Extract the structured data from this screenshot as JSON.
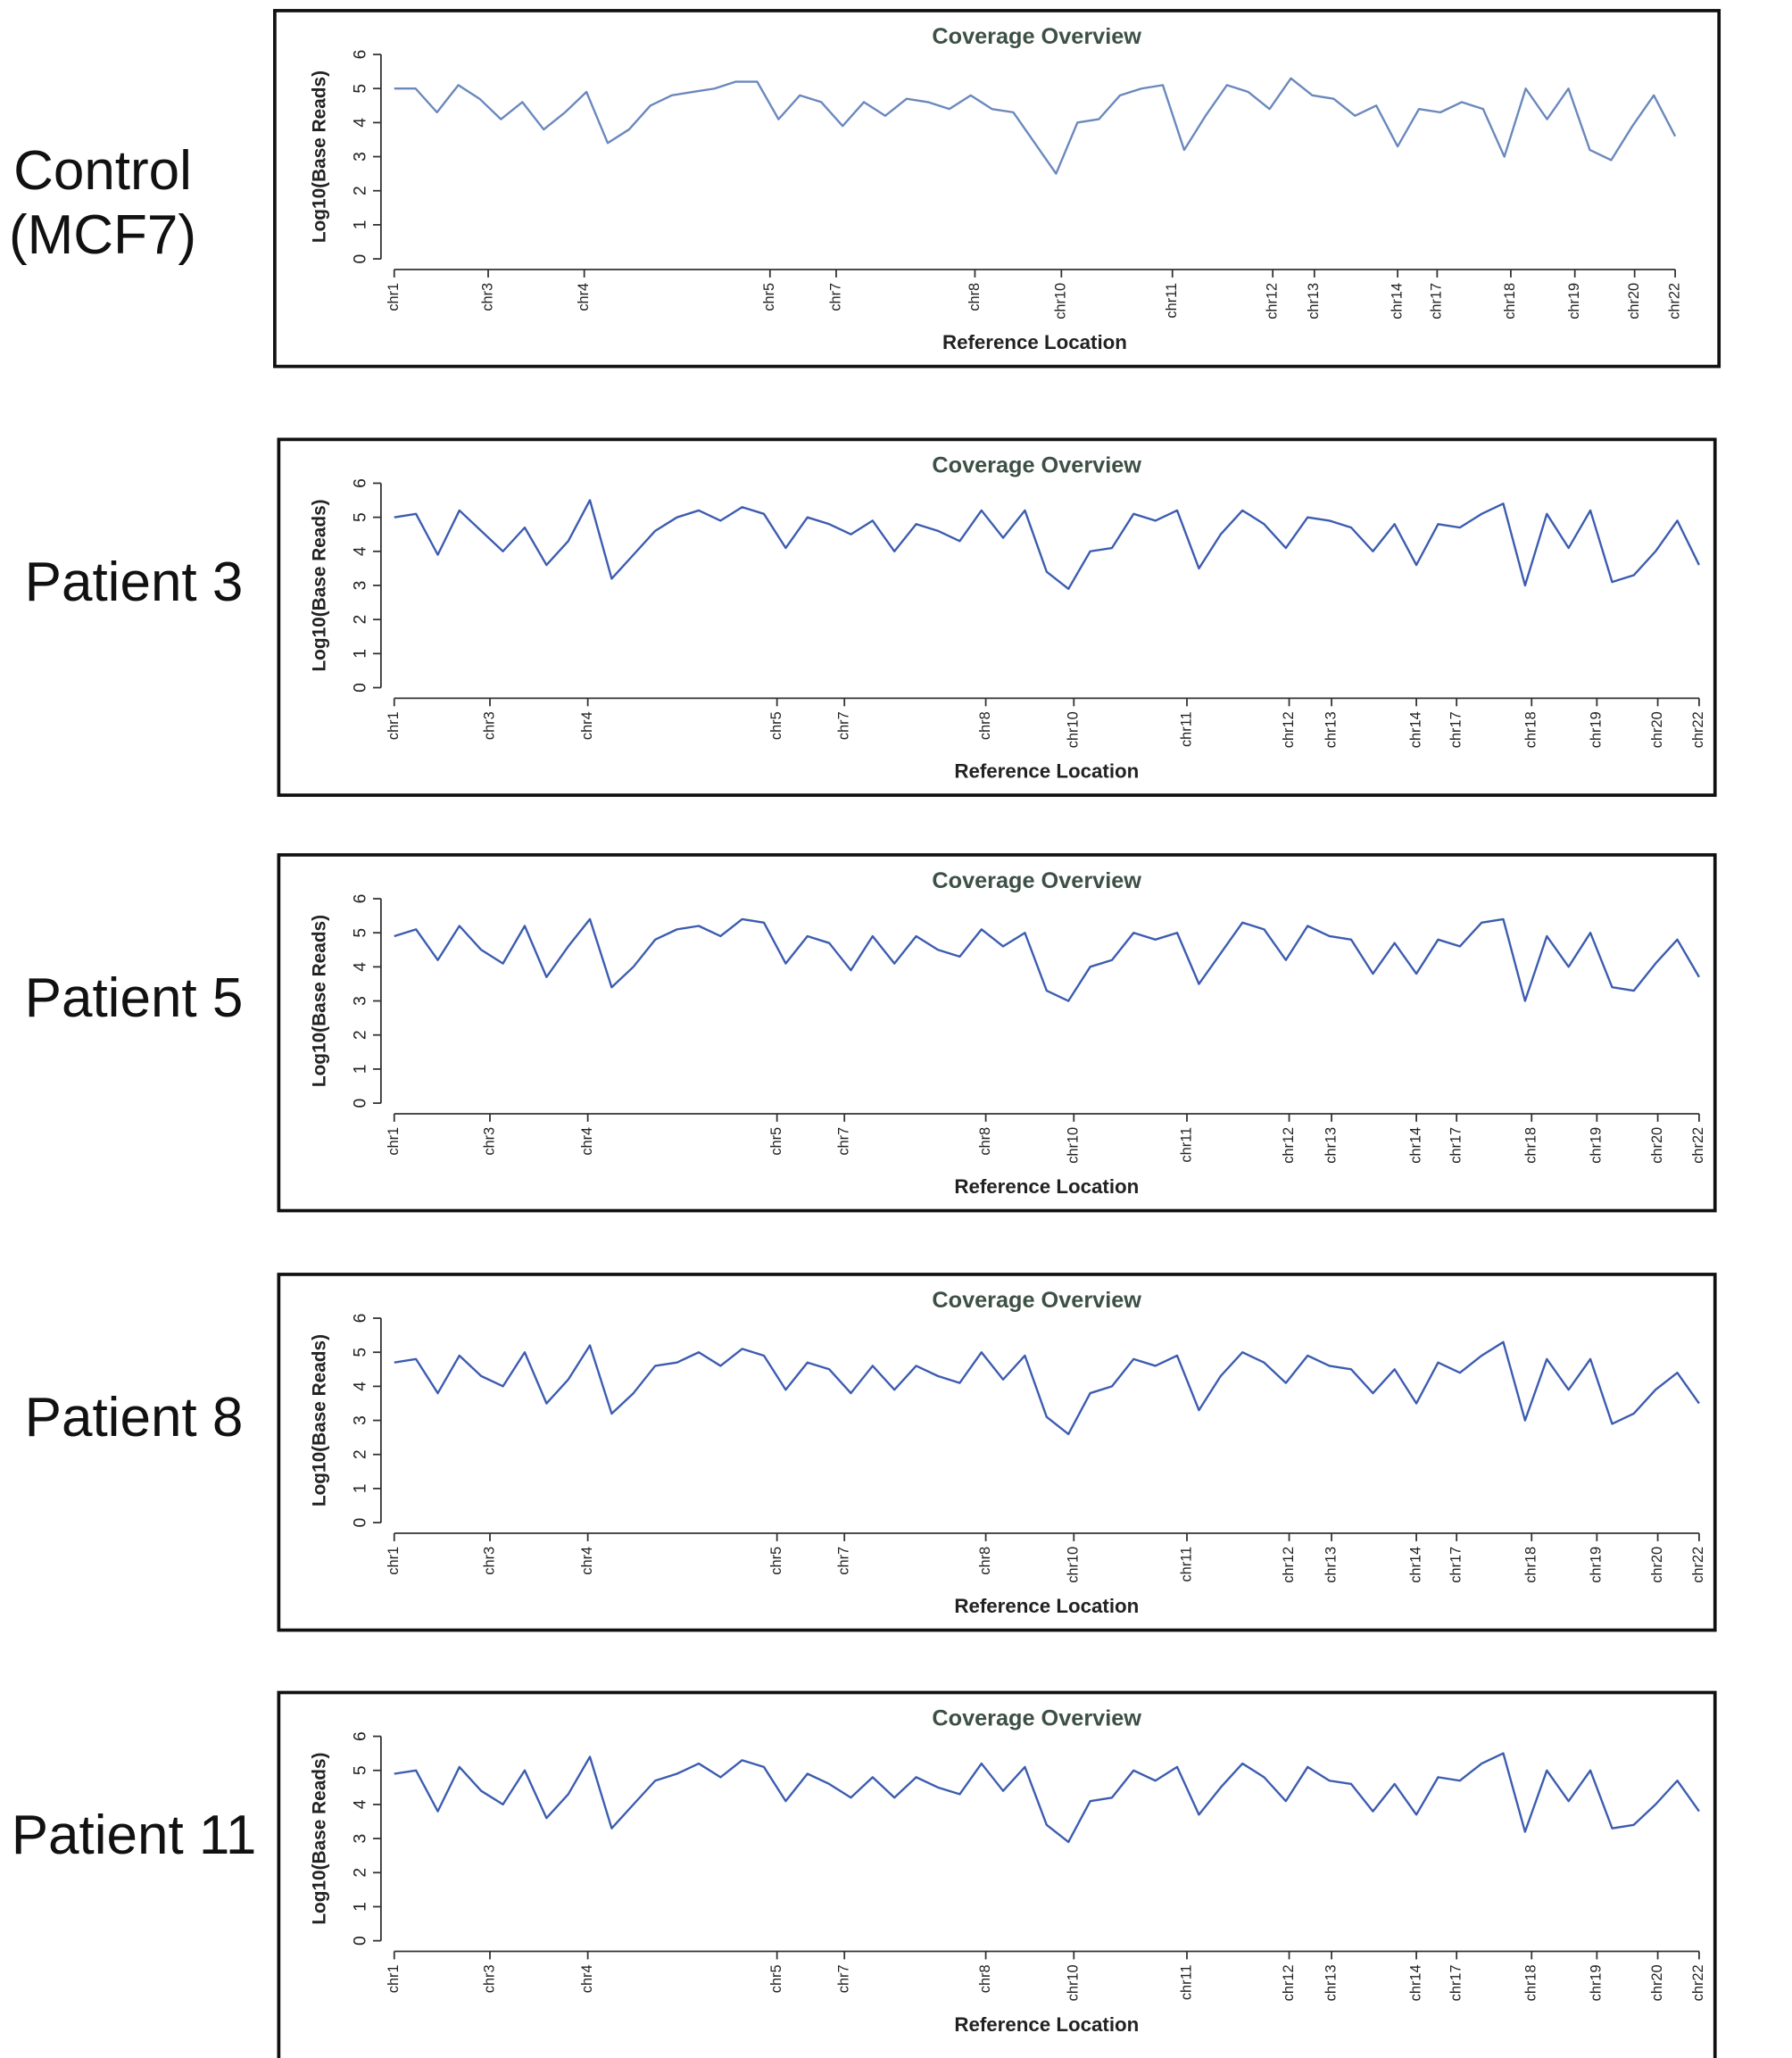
{
  "chart_data": [
    {
      "type": "line",
      "label": "Control (MCF7)",
      "title": "Coverage Overview",
      "xlabel": "Reference Location",
      "ylabel": "Log10(Base Reads)",
      "color": "#6a88bd",
      "xlim": [
        0,
        120
      ],
      "ylim": [
        0,
        6
      ],
      "yticks": [
        0,
        1,
        2,
        3,
        4,
        5,
        6
      ],
      "xticks": [
        {
          "value": 0,
          "label": "chr1"
        },
        {
          "value": 8.8,
          "label": "chr3"
        },
        {
          "value": 17.8,
          "label": "chr4"
        },
        {
          "value": 35.2,
          "label": "chr5"
        },
        {
          "value": 41.4,
          "label": "chr7"
        },
        {
          "value": 54.4,
          "label": "chr8"
        },
        {
          "value": 62.5,
          "label": "chr10"
        },
        {
          "value": 72.9,
          "label": "chr11"
        },
        {
          "value": 82.3,
          "label": "chr12"
        },
        {
          "value": 86.2,
          "label": "chr13"
        },
        {
          "value": 94,
          "label": "chr14"
        },
        {
          "value": 97.7,
          "label": "chr17"
        },
        {
          "value": 104.6,
          "label": "chr18"
        },
        {
          "value": 110.6,
          "label": "chr19"
        },
        {
          "value": 116.2,
          "label": "chr20"
        },
        {
          "value": 120,
          "label": "chr22"
        }
      ],
      "x": [
        0,
        2,
        4,
        6,
        8,
        10,
        12,
        14,
        16,
        18,
        20,
        22,
        24,
        26,
        28,
        30,
        32,
        34,
        36,
        38,
        40,
        42,
        44,
        46,
        48,
        50,
        52,
        54,
        56,
        58,
        60,
        62,
        64,
        66,
        68,
        70,
        72,
        74,
        76,
        78,
        80,
        82,
        84,
        86,
        88,
        90,
        92,
        94,
        96,
        98,
        100,
        102,
        104,
        106,
        108,
        110,
        112,
        114,
        116,
        118,
        120
      ],
      "values": [
        5.0,
        5.0,
        4.3,
        5.1,
        4.7,
        4.1,
        4.6,
        3.8,
        4.3,
        4.9,
        3.4,
        3.8,
        4.5,
        4.8,
        4.9,
        5.0,
        5.2,
        5.2,
        4.1,
        4.8,
        4.6,
        3.9,
        4.6,
        4.2,
        4.7,
        4.6,
        4.4,
        4.8,
        4.4,
        4.3,
        3.4,
        2.5,
        4.0,
        4.1,
        4.8,
        5.0,
        5.1,
        3.2,
        4.2,
        5.1,
        4.9,
        4.4,
        5.3,
        4.8,
        4.7,
        4.2,
        4.5,
        3.3,
        4.4,
        4.3,
        4.6,
        4.4,
        3.0,
        5.0,
        4.1,
        5.0,
        3.2,
        2.9,
        3.9,
        4.8,
        3.6
      ]
    },
    {
      "type": "line",
      "label": "Patient 3",
      "title": "Coverage Overview",
      "xlabel": "Reference Location",
      "ylabel": "Log10(Base Reads)",
      "color": "#3c5cb0",
      "xlim": [
        0,
        120
      ],
      "ylim": [
        0,
        6
      ],
      "yticks": [
        0,
        1,
        2,
        3,
        4,
        5,
        6
      ],
      "xticks": [
        {
          "value": 0,
          "label": "chr1"
        },
        {
          "value": 8.8,
          "label": "chr3"
        },
        {
          "value": 17.8,
          "label": "chr4"
        },
        {
          "value": 35.2,
          "label": "chr5"
        },
        {
          "value": 41.4,
          "label": "chr7"
        },
        {
          "value": 54.4,
          "label": "chr8"
        },
        {
          "value": 62.5,
          "label": "chr10"
        },
        {
          "value": 72.9,
          "label": "chr11"
        },
        {
          "value": 82.3,
          "label": "chr12"
        },
        {
          "value": 86.2,
          "label": "chr13"
        },
        {
          "value": 94,
          "label": "chr14"
        },
        {
          "value": 97.7,
          "label": "chr17"
        },
        {
          "value": 104.6,
          "label": "chr18"
        },
        {
          "value": 110.6,
          "label": "chr19"
        },
        {
          "value": 116.2,
          "label": "chr20"
        },
        {
          "value": 120,
          "label": "chr22"
        }
      ],
      "x": [
        0,
        2,
        4,
        6,
        8,
        10,
        12,
        14,
        16,
        18,
        20,
        22,
        24,
        26,
        28,
        30,
        32,
        34,
        36,
        38,
        40,
        42,
        44,
        46,
        48,
        50,
        52,
        54,
        56,
        58,
        60,
        62,
        64,
        66,
        68,
        70,
        72,
        74,
        76,
        78,
        80,
        82,
        84,
        86,
        88,
        90,
        92,
        94,
        96,
        98,
        100,
        102,
        104,
        106,
        108,
        110,
        112,
        114,
        116,
        118,
        120
      ],
      "values": [
        5.0,
        5.1,
        3.9,
        5.2,
        4.6,
        4.0,
        4.7,
        3.6,
        4.3,
        5.5,
        3.2,
        3.9,
        4.6,
        5.0,
        5.2,
        4.9,
        5.3,
        5.1,
        4.1,
        5.0,
        4.8,
        4.5,
        4.9,
        4.0,
        4.8,
        4.6,
        4.3,
        5.2,
        4.4,
        5.2,
        3.4,
        2.9,
        4.0,
        4.1,
        5.1,
        4.9,
        5.2,
        3.5,
        4.5,
        5.2,
        4.8,
        4.1,
        5.0,
        4.9,
        4.7,
        4.0,
        4.8,
        3.6,
        4.8,
        4.7,
        5.1,
        5.4,
        3.0,
        5.1,
        4.1,
        5.2,
        3.1,
        3.3,
        4.0,
        4.9,
        3.6
      ]
    },
    {
      "type": "line",
      "label": "Patient 5",
      "title": "Coverage Overview",
      "xlabel": "Reference Location",
      "ylabel": "Log10(Base Reads)",
      "color": "#3c5cb0",
      "xlim": [
        0,
        120
      ],
      "ylim": [
        0,
        6
      ],
      "yticks": [
        0,
        1,
        2,
        3,
        4,
        5,
        6
      ],
      "xticks": [
        {
          "value": 0,
          "label": "chr1"
        },
        {
          "value": 8.8,
          "label": "chr3"
        },
        {
          "value": 17.8,
          "label": "chr4"
        },
        {
          "value": 35.2,
          "label": "chr5"
        },
        {
          "value": 41.4,
          "label": "chr7"
        },
        {
          "value": 54.4,
          "label": "chr8"
        },
        {
          "value": 62.5,
          "label": "chr10"
        },
        {
          "value": 72.9,
          "label": "chr11"
        },
        {
          "value": 82.3,
          "label": "chr12"
        },
        {
          "value": 86.2,
          "label": "chr13"
        },
        {
          "value": 94,
          "label": "chr14"
        },
        {
          "value": 97.7,
          "label": "chr17"
        },
        {
          "value": 104.6,
          "label": "chr18"
        },
        {
          "value": 110.6,
          "label": "chr19"
        },
        {
          "value": 116.2,
          "label": "chr20"
        },
        {
          "value": 120,
          "label": "chr22"
        }
      ],
      "x": [
        0,
        2,
        4,
        6,
        8,
        10,
        12,
        14,
        16,
        18,
        20,
        22,
        24,
        26,
        28,
        30,
        32,
        34,
        36,
        38,
        40,
        42,
        44,
        46,
        48,
        50,
        52,
        54,
        56,
        58,
        60,
        62,
        64,
        66,
        68,
        70,
        72,
        74,
        76,
        78,
        80,
        82,
        84,
        86,
        88,
        90,
        92,
        94,
        96,
        98,
        100,
        102,
        104,
        106,
        108,
        110,
        112,
        114,
        116,
        118,
        120
      ],
      "values": [
        4.9,
        5.1,
        4.2,
        5.2,
        4.5,
        4.1,
        5.2,
        3.7,
        4.6,
        5.4,
        3.4,
        4.0,
        4.8,
        5.1,
        5.2,
        4.9,
        5.4,
        5.3,
        4.1,
        4.9,
        4.7,
        3.9,
        4.9,
        4.1,
        4.9,
        4.5,
        4.3,
        5.1,
        4.6,
        5.0,
        3.3,
        3.0,
        4.0,
        4.2,
        5.0,
        4.8,
        5.0,
        3.5,
        4.4,
        5.3,
        5.1,
        4.2,
        5.2,
        4.9,
        4.8,
        3.8,
        4.7,
        3.8,
        4.8,
        4.6,
        5.3,
        5.4,
        3.0,
        4.9,
        4.0,
        5.0,
        3.4,
        3.3,
        4.1,
        4.8,
        3.7
      ]
    },
    {
      "type": "line",
      "label": "Patient 8",
      "title": "Coverage Overview",
      "xlabel": "Reference Location",
      "ylabel": "Log10(Base Reads)",
      "color": "#3c5cb0",
      "xlim": [
        0,
        120
      ],
      "ylim": [
        0,
        6
      ],
      "yticks": [
        0,
        1,
        2,
        3,
        4,
        5,
        6
      ],
      "xticks": [
        {
          "value": 0,
          "label": "chr1"
        },
        {
          "value": 8.8,
          "label": "chr3"
        },
        {
          "value": 17.8,
          "label": "chr4"
        },
        {
          "value": 35.2,
          "label": "chr5"
        },
        {
          "value": 41.4,
          "label": "chr7"
        },
        {
          "value": 54.4,
          "label": "chr8"
        },
        {
          "value": 62.5,
          "label": "chr10"
        },
        {
          "value": 72.9,
          "label": "chr11"
        },
        {
          "value": 82.3,
          "label": "chr12"
        },
        {
          "value": 86.2,
          "label": "chr13"
        },
        {
          "value": 94,
          "label": "chr14"
        },
        {
          "value": 97.7,
          "label": "chr17"
        },
        {
          "value": 104.6,
          "label": "chr18"
        },
        {
          "value": 110.6,
          "label": "chr19"
        },
        {
          "value": 116.2,
          "label": "chr20"
        },
        {
          "value": 120,
          "label": "chr22"
        }
      ],
      "x": [
        0,
        2,
        4,
        6,
        8,
        10,
        12,
        14,
        16,
        18,
        20,
        22,
        24,
        26,
        28,
        30,
        32,
        34,
        36,
        38,
        40,
        42,
        44,
        46,
        48,
        50,
        52,
        54,
        56,
        58,
        60,
        62,
        64,
        66,
        68,
        70,
        72,
        74,
        76,
        78,
        80,
        82,
        84,
        86,
        88,
        90,
        92,
        94,
        96,
        98,
        100,
        102,
        104,
        106,
        108,
        110,
        112,
        114,
        116,
        118,
        120
      ],
      "values": [
        4.7,
        4.8,
        3.8,
        4.9,
        4.3,
        4.0,
        5.0,
        3.5,
        4.2,
        5.2,
        3.2,
        3.8,
        4.6,
        4.7,
        5.0,
        4.6,
        5.1,
        4.9,
        3.9,
        4.7,
        4.5,
        3.8,
        4.6,
        3.9,
        4.6,
        4.3,
        4.1,
        5.0,
        4.2,
        4.9,
        3.1,
        2.6,
        3.8,
        4.0,
        4.8,
        4.6,
        4.9,
        3.3,
        4.3,
        5.0,
        4.7,
        4.1,
        4.9,
        4.6,
        4.5,
        3.8,
        4.5,
        3.5,
        4.7,
        4.4,
        4.9,
        5.3,
        3.0,
        4.8,
        3.9,
        4.8,
        2.9,
        3.2,
        3.9,
        4.4,
        3.5
      ]
    },
    {
      "type": "line",
      "label": "Patient 11",
      "title": "Coverage Overview",
      "xlabel": "Reference Location",
      "ylabel": "Log10(Base Reads)",
      "color": "#3c5cb0",
      "xlim": [
        0,
        120
      ],
      "ylim": [
        0,
        6
      ],
      "yticks": [
        0,
        1,
        2,
        3,
        4,
        5,
        6
      ],
      "xticks": [
        {
          "value": 0,
          "label": "chr1"
        },
        {
          "value": 8.8,
          "label": "chr3"
        },
        {
          "value": 17.8,
          "label": "chr4"
        },
        {
          "value": 35.2,
          "label": "chr5"
        },
        {
          "value": 41.4,
          "label": "chr7"
        },
        {
          "value": 54.4,
          "label": "chr8"
        },
        {
          "value": 62.5,
          "label": "chr10"
        },
        {
          "value": 72.9,
          "label": "chr11"
        },
        {
          "value": 82.3,
          "label": "chr12"
        },
        {
          "value": 86.2,
          "label": "chr13"
        },
        {
          "value": 94,
          "label": "chr14"
        },
        {
          "value": 97.7,
          "label": "chr17"
        },
        {
          "value": 104.6,
          "label": "chr18"
        },
        {
          "value": 110.6,
          "label": "chr19"
        },
        {
          "value": 116.2,
          "label": "chr20"
        },
        {
          "value": 120,
          "label": "chr22"
        }
      ],
      "x": [
        0,
        2,
        4,
        6,
        8,
        10,
        12,
        14,
        16,
        18,
        20,
        22,
        24,
        26,
        28,
        30,
        32,
        34,
        36,
        38,
        40,
        42,
        44,
        46,
        48,
        50,
        52,
        54,
        56,
        58,
        60,
        62,
        64,
        66,
        68,
        70,
        72,
        74,
        76,
        78,
        80,
        82,
        84,
        86,
        88,
        90,
        92,
        94,
        96,
        98,
        100,
        102,
        104,
        106,
        108,
        110,
        112,
        114,
        116,
        118,
        120
      ],
      "values": [
        4.9,
        5.0,
        3.8,
        5.1,
        4.4,
        4.0,
        5.0,
        3.6,
        4.3,
        5.4,
        3.3,
        4.0,
        4.7,
        4.9,
        5.2,
        4.8,
        5.3,
        5.1,
        4.1,
        4.9,
        4.6,
        4.2,
        4.8,
        4.2,
        4.8,
        4.5,
        4.3,
        5.2,
        4.4,
        5.1,
        3.4,
        2.9,
        4.1,
        4.2,
        5.0,
        4.7,
        5.1,
        3.7,
        4.5,
        5.2,
        4.8,
        4.1,
        5.1,
        4.7,
        4.6,
        3.8,
        4.6,
        3.7,
        4.8,
        4.7,
        5.2,
        5.5,
        3.2,
        5.0,
        4.1,
        5.0,
        3.3,
        3.4,
        4.0,
        4.7,
        3.8
      ]
    }
  ]
}
